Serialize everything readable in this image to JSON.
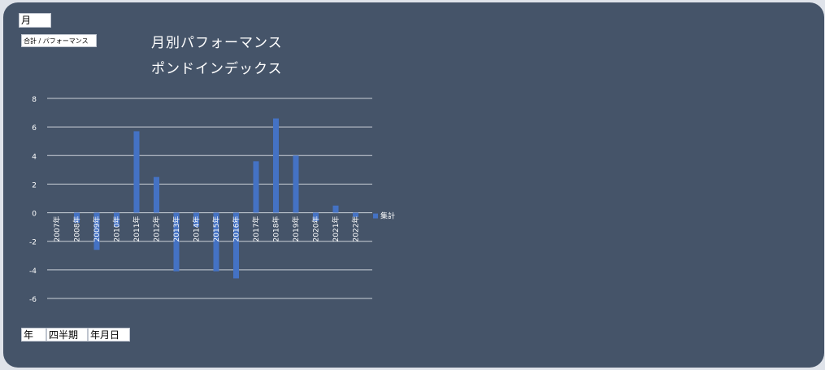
{
  "filters": {
    "month": "月",
    "value_field": "合計 / パフォーマンス",
    "year": "年",
    "quarter": "四半期",
    "date": "年月日"
  },
  "titles": {
    "line1": "月別パフォーマンス",
    "line2": "ポンドインデックス"
  },
  "colors": {
    "background": "#455469",
    "bar": "#4472c4",
    "grid": "#c9cfd8",
    "text": "#ffffff"
  },
  "chart_data": {
    "type": "bar",
    "categories": [
      "2007年",
      "2008年",
      "2009年",
      "2010年",
      "2011年",
      "2012年",
      "2013年",
      "2014年",
      "2015年",
      "2016年",
      "2017年",
      "2018年",
      "2019年",
      "2020年",
      "2021年",
      "2022年"
    ],
    "series": [
      {
        "name": "集計",
        "values": [
          0,
          -0.7,
          -2.6,
          -1.0,
          5.7,
          2.5,
          -4.1,
          -1.0,
          -4.1,
          -4.6,
          3.6,
          6.6,
          4.0,
          -0.6,
          0.5,
          -0.3
        ]
      }
    ],
    "yticks": [
      8,
      6,
      4,
      2,
      0,
      -2,
      -4,
      -6
    ],
    "ylim": [
      -6,
      8
    ],
    "grid": true,
    "legend": "right"
  }
}
